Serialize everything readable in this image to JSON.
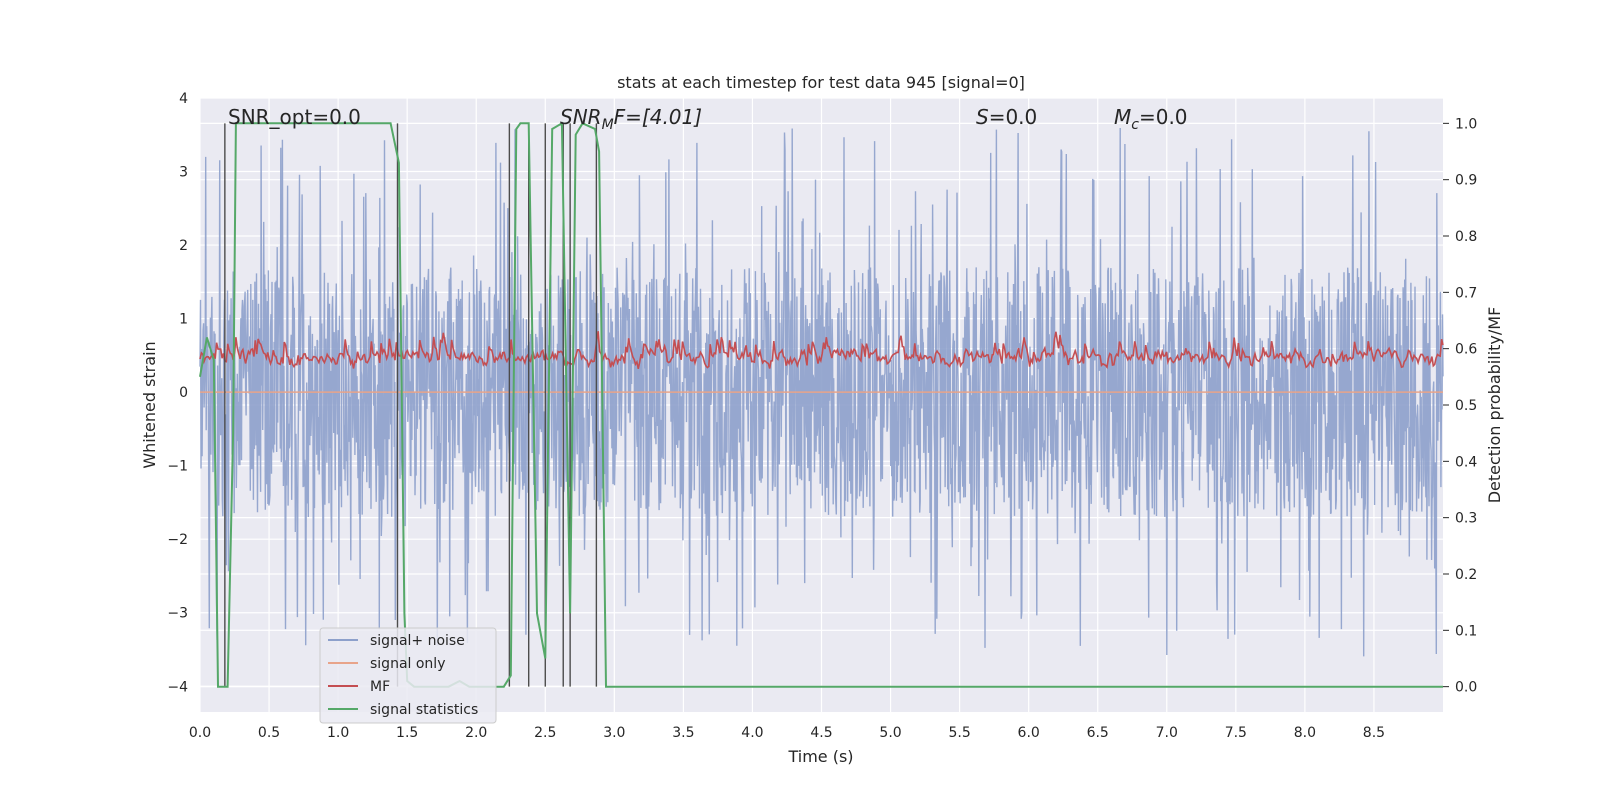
{
  "chart_data": {
    "type": "line",
    "title": "stats at each timestep for test data 945 [signal=0]",
    "xlabel": "Time (s)",
    "ylabel": "Whitened strain",
    "y2label": "Detection probability/MF",
    "xlim": [
      0.0,
      9.0
    ],
    "ylim": [
      -4.35,
      4.0
    ],
    "y2lim": [
      -0.045,
      1.045
    ],
    "xticks": [
      "0.0",
      "0.5",
      "1.0",
      "1.5",
      "2.0",
      "2.5",
      "3.0",
      "3.5",
      "4.0",
      "4.5",
      "5.0",
      "5.5",
      "6.0",
      "6.5",
      "7.0",
      "7.5",
      "8.0",
      "8.5"
    ],
    "yticks": [
      "−4",
      "−3",
      "−2",
      "−1",
      "0",
      "1",
      "2",
      "3",
      "4"
    ],
    "y2ticks": [
      "0.0",
      "0.1",
      "0.2",
      "0.3",
      "0.4",
      "0.5",
      "0.6",
      "0.7",
      "0.8",
      "0.9",
      "1.0"
    ],
    "grid": true,
    "legend_position": "lower-left",
    "annotations": {
      "snr_opt": "SNR_opt=0.0",
      "snr_mf_main": "SNR",
      "snr_mf_sub": "M",
      "snr_mf_rest": "F=[4.01]",
      "s_italic": "S",
      "s_rest": "=0.0",
      "mc_main": "M",
      "mc_sub": "c",
      "mc_rest": "=0.0"
    },
    "series": [
      {
        "name": "signal+ noise",
        "color": "#8da0cb",
        "axis": "left",
        "style": "dense noise band, approx ±1.8 whitened strain with peaks to ±3.6",
        "amplitude": 1.7,
        "peak_range": [
          -4.0,
          3.6
        ]
      },
      {
        "name": "signal only",
        "color": "#e8a48a",
        "axis": "left",
        "x": [
          0.0,
          9.0
        ],
        "y": [
          0.0,
          0.0
        ]
      },
      {
        "name": "MF",
        "color": "#c44e52",
        "axis": "right",
        "style": "noisy trace between approx 0.52 and 0.65 detection probability/MF",
        "range": [
          0.52,
          0.65
        ]
      },
      {
        "name": "signal statistics",
        "color": "#55a868",
        "axis": "right",
        "x": [
          0.0,
          0.05,
          0.1,
          0.13,
          0.2,
          0.24,
          0.26,
          0.3,
          0.5,
          0.8,
          1.0,
          1.2,
          1.38,
          1.44,
          1.48,
          1.5,
          1.55,
          1.7,
          1.8,
          1.88,
          1.95,
          2.1,
          2.2,
          2.25,
          2.29,
          2.32,
          2.38,
          2.44,
          2.5,
          2.55,
          2.62,
          2.68,
          2.72,
          2.77,
          2.86,
          2.89,
          2.94,
          3.0,
          4.0,
          5.0,
          6.0,
          7.0,
          8.0,
          9.0
        ],
        "y": [
          0.55,
          0.62,
          0.58,
          0.0,
          0.0,
          0.45,
          1.0,
          1.0,
          1.0,
          1.0,
          1.0,
          1.0,
          1.0,
          0.93,
          0.13,
          0.01,
          0.0,
          0.0,
          0.0,
          0.01,
          0.0,
          0.0,
          0.0,
          0.02,
          0.99,
          1.0,
          1.0,
          0.13,
          0.05,
          0.99,
          1.0,
          0.13,
          0.98,
          1.0,
          0.99,
          0.95,
          0.0,
          0.0,
          0.0,
          0.0,
          0.0,
          0.0,
          0.0,
          0.0
        ]
      },
      {
        "name": "detection markers",
        "color": "#4c4c4c",
        "axis": "right",
        "style": "vertical lines from 0.0 to 1.0",
        "x": [
          0.18,
          1.43,
          2.24,
          2.38,
          2.5,
          2.63,
          2.68,
          2.87
        ]
      }
    ],
    "legend": [
      {
        "label": "signal+ noise",
        "color": "#8da0cb"
      },
      {
        "label": "signal only",
        "color": "#e8a48a"
      },
      {
        "label": "MF",
        "color": "#c44e52"
      },
      {
        "label": "signal statistics",
        "color": "#55a868"
      }
    ]
  }
}
